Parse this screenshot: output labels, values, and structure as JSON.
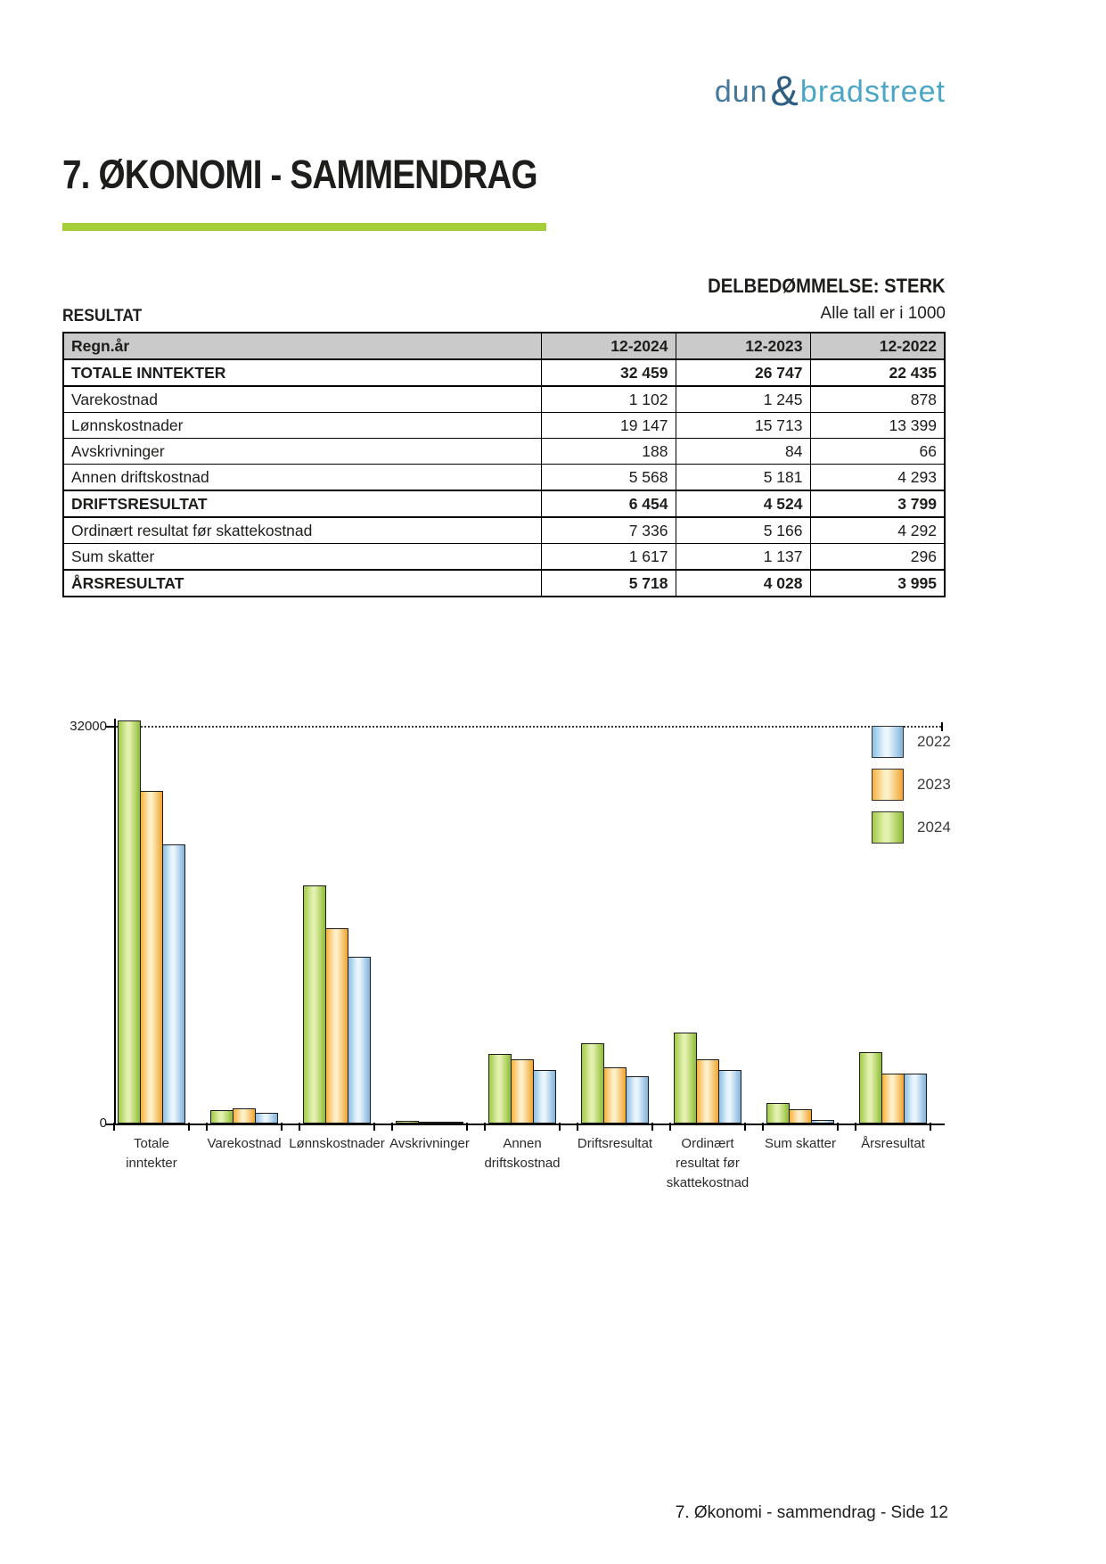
{
  "page": {
    "logo": {
      "dun": "dun",
      "amp": "&",
      "bradstreet": "bradstreet"
    },
    "title": "7. ØKONOMI - SAMMENDRAG",
    "assessment": "DELBEDØMMELSE: STERK",
    "section_label": "RESULTAT",
    "units_note": "Alle tall er i 1000",
    "footer": "7. Økonomi - sammendrag - Side 12",
    "accent_color": "#A6CE39",
    "logo_colors": {
      "dun": "#45789B",
      "amp": "#2E5F82",
      "bradstreet": "#4BA6C6"
    }
  },
  "table": {
    "header": [
      "Regn.år",
      "12-2024",
      "12-2023",
      "12-2022"
    ],
    "header_bg": "#CACACA",
    "rows": [
      {
        "label": "TOTALE INNTEKTER",
        "values": [
          "32 459",
          "26 747",
          "22 435"
        ],
        "bold": true
      },
      {
        "label": "Varekostnad",
        "values": [
          "1 102",
          "1 245",
          "878"
        ],
        "bold": false
      },
      {
        "label": "Lønnskostnader",
        "values": [
          "19 147",
          "15 713",
          "13 399"
        ],
        "bold": false
      },
      {
        "label": "Avskrivninger",
        "values": [
          "188",
          "84",
          "66"
        ],
        "bold": false
      },
      {
        "label": "Annen driftskostnad",
        "values": [
          "5 568",
          "5 181",
          "4 293"
        ],
        "bold": false
      },
      {
        "label": "DRIFTSRESULTAT",
        "values": [
          "6 454",
          "4 524",
          "3 799"
        ],
        "bold": true
      },
      {
        "label": "Ordinært resultat før skattekostnad",
        "values": [
          "7 336",
          "5 166",
          "4 292"
        ],
        "bold": false
      },
      {
        "label": "Sum skatter",
        "values": [
          "1 617",
          "1 137",
          "296"
        ],
        "bold": false
      },
      {
        "label": "ÅRSRESULTAT",
        "values": [
          "5 718",
          "4 028",
          "3 995"
        ],
        "bold": true
      }
    ]
  },
  "chart_data": {
    "type": "bar",
    "title": "",
    "xlabel": "",
    "ylabel": "",
    "ylim": [
      0,
      32000
    ],
    "grid": "single dotted gridline at 32000",
    "legend_position": "top-right",
    "categories": [
      "Totale inntekter",
      "Varekostnad",
      "Lønnskostnader",
      "Avskrivninger",
      "Annen driftskostnad",
      "Driftsresultat",
      "Ordinært resultat før skattekostnad",
      "Sum skatter",
      "Årsresultat"
    ],
    "category_label_lines": [
      [
        "Totale",
        "inntekter"
      ],
      [
        "Varekostnad"
      ],
      [
        "Lønnskostnader"
      ],
      [
        "Avskrivninger"
      ],
      [
        "Annen",
        "driftskostnad"
      ],
      [
        "Driftsresultat"
      ],
      [
        "Ordinært",
        "resultat før",
        "skattekostnad"
      ],
      [
        "Sum skatter"
      ],
      [
        "Årsresultat"
      ]
    ],
    "bar_group_order": [
      "2024",
      "2023",
      "2022"
    ],
    "series": [
      {
        "name": "2024",
        "values": [
          32459,
          1102,
          19147,
          188,
          5568,
          6454,
          7336,
          1617,
          5718
        ],
        "gradient": [
          "#A3CB45",
          "#E2F1AF",
          "#8FBC33"
        ]
      },
      {
        "name": "2023",
        "values": [
          26747,
          1245,
          15713,
          84,
          5181,
          4524,
          5166,
          1137,
          4028
        ],
        "gradient": [
          "#F7B03C",
          "#FCEFC6",
          "#F2A430"
        ]
      },
      {
        "name": "2022",
        "values": [
          22435,
          878,
          13399,
          66,
          4293,
          3799,
          4292,
          296,
          3995
        ],
        "gradient": [
          "#8CBFE5",
          "#EAF5FC",
          "#7FB3DC"
        ]
      }
    ],
    "legend_entries": [
      "2022",
      "2023",
      "2024"
    ],
    "y_axis": {
      "ticks": [
        {
          "value": 32000,
          "label": "32000"
        },
        {
          "value": 0,
          "label": "0"
        }
      ]
    }
  }
}
